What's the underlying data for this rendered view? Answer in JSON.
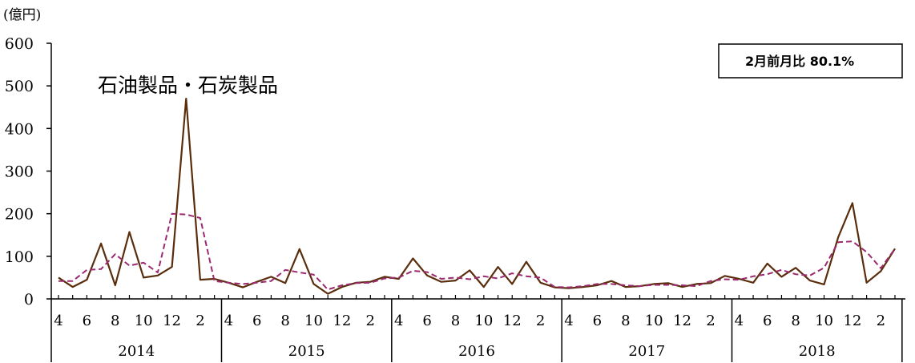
{
  "chart_data": {
    "type": "line",
    "unit_label": "(億円)",
    "title": "石油製品・石炭製品",
    "badge": "2月前月比  80.1%",
    "ylim": [
      0,
      600
    ],
    "yticks": [
      0,
      100,
      200,
      300,
      400,
      500,
      600
    ],
    "grid": false,
    "month_tick_labels": [
      "4",
      "6",
      "8",
      "10",
      "12",
      "2",
      "4",
      "6",
      "8",
      "10",
      "12",
      "2",
      "4",
      "6",
      "8",
      "10",
      "12",
      "2",
      "4",
      "6",
      "8",
      "10",
      "12",
      "2",
      "4",
      "6",
      "8",
      "10",
      "12",
      "2"
    ],
    "years": [
      "2014",
      "2015",
      "2016",
      "2017",
      "2018"
    ],
    "series": [
      {
        "style": "solid",
        "color": "#5a2d0c",
        "values": [
          50,
          28,
          45,
          130,
          32,
          157,
          50,
          55,
          75,
          470,
          45,
          47,
          38,
          27,
          40,
          52,
          37,
          117,
          35,
          12,
          28,
          38,
          40,
          52,
          47,
          95,
          55,
          40,
          43,
          67,
          28,
          75,
          35,
          87,
          38,
          27,
          25,
          28,
          32,
          42,
          28,
          30,
          35,
          37,
          28,
          35,
          37,
          54,
          47,
          38,
          83,
          52,
          73,
          43,
          34,
          145,
          225,
          38,
          65,
          118
        ]
      },
      {
        "style": "dashed",
        "color": "#9b2a6f",
        "values": [
          42,
          42,
          68,
          70,
          105,
          78,
          85,
          62,
          200,
          198,
          190,
          42,
          38,
          35,
          38,
          42,
          68,
          62,
          57,
          22,
          32,
          37,
          38,
          48,
          50,
          66,
          63,
          47,
          50,
          46,
          53,
          48,
          60,
          53,
          50,
          28,
          27,
          30,
          35,
          35,
          32,
          30,
          33,
          33,
          32,
          30,
          42,
          46,
          45,
          53,
          58,
          68,
          58,
          55,
          73,
          133,
          135,
          110,
          72,
          118
        ]
      }
    ]
  }
}
